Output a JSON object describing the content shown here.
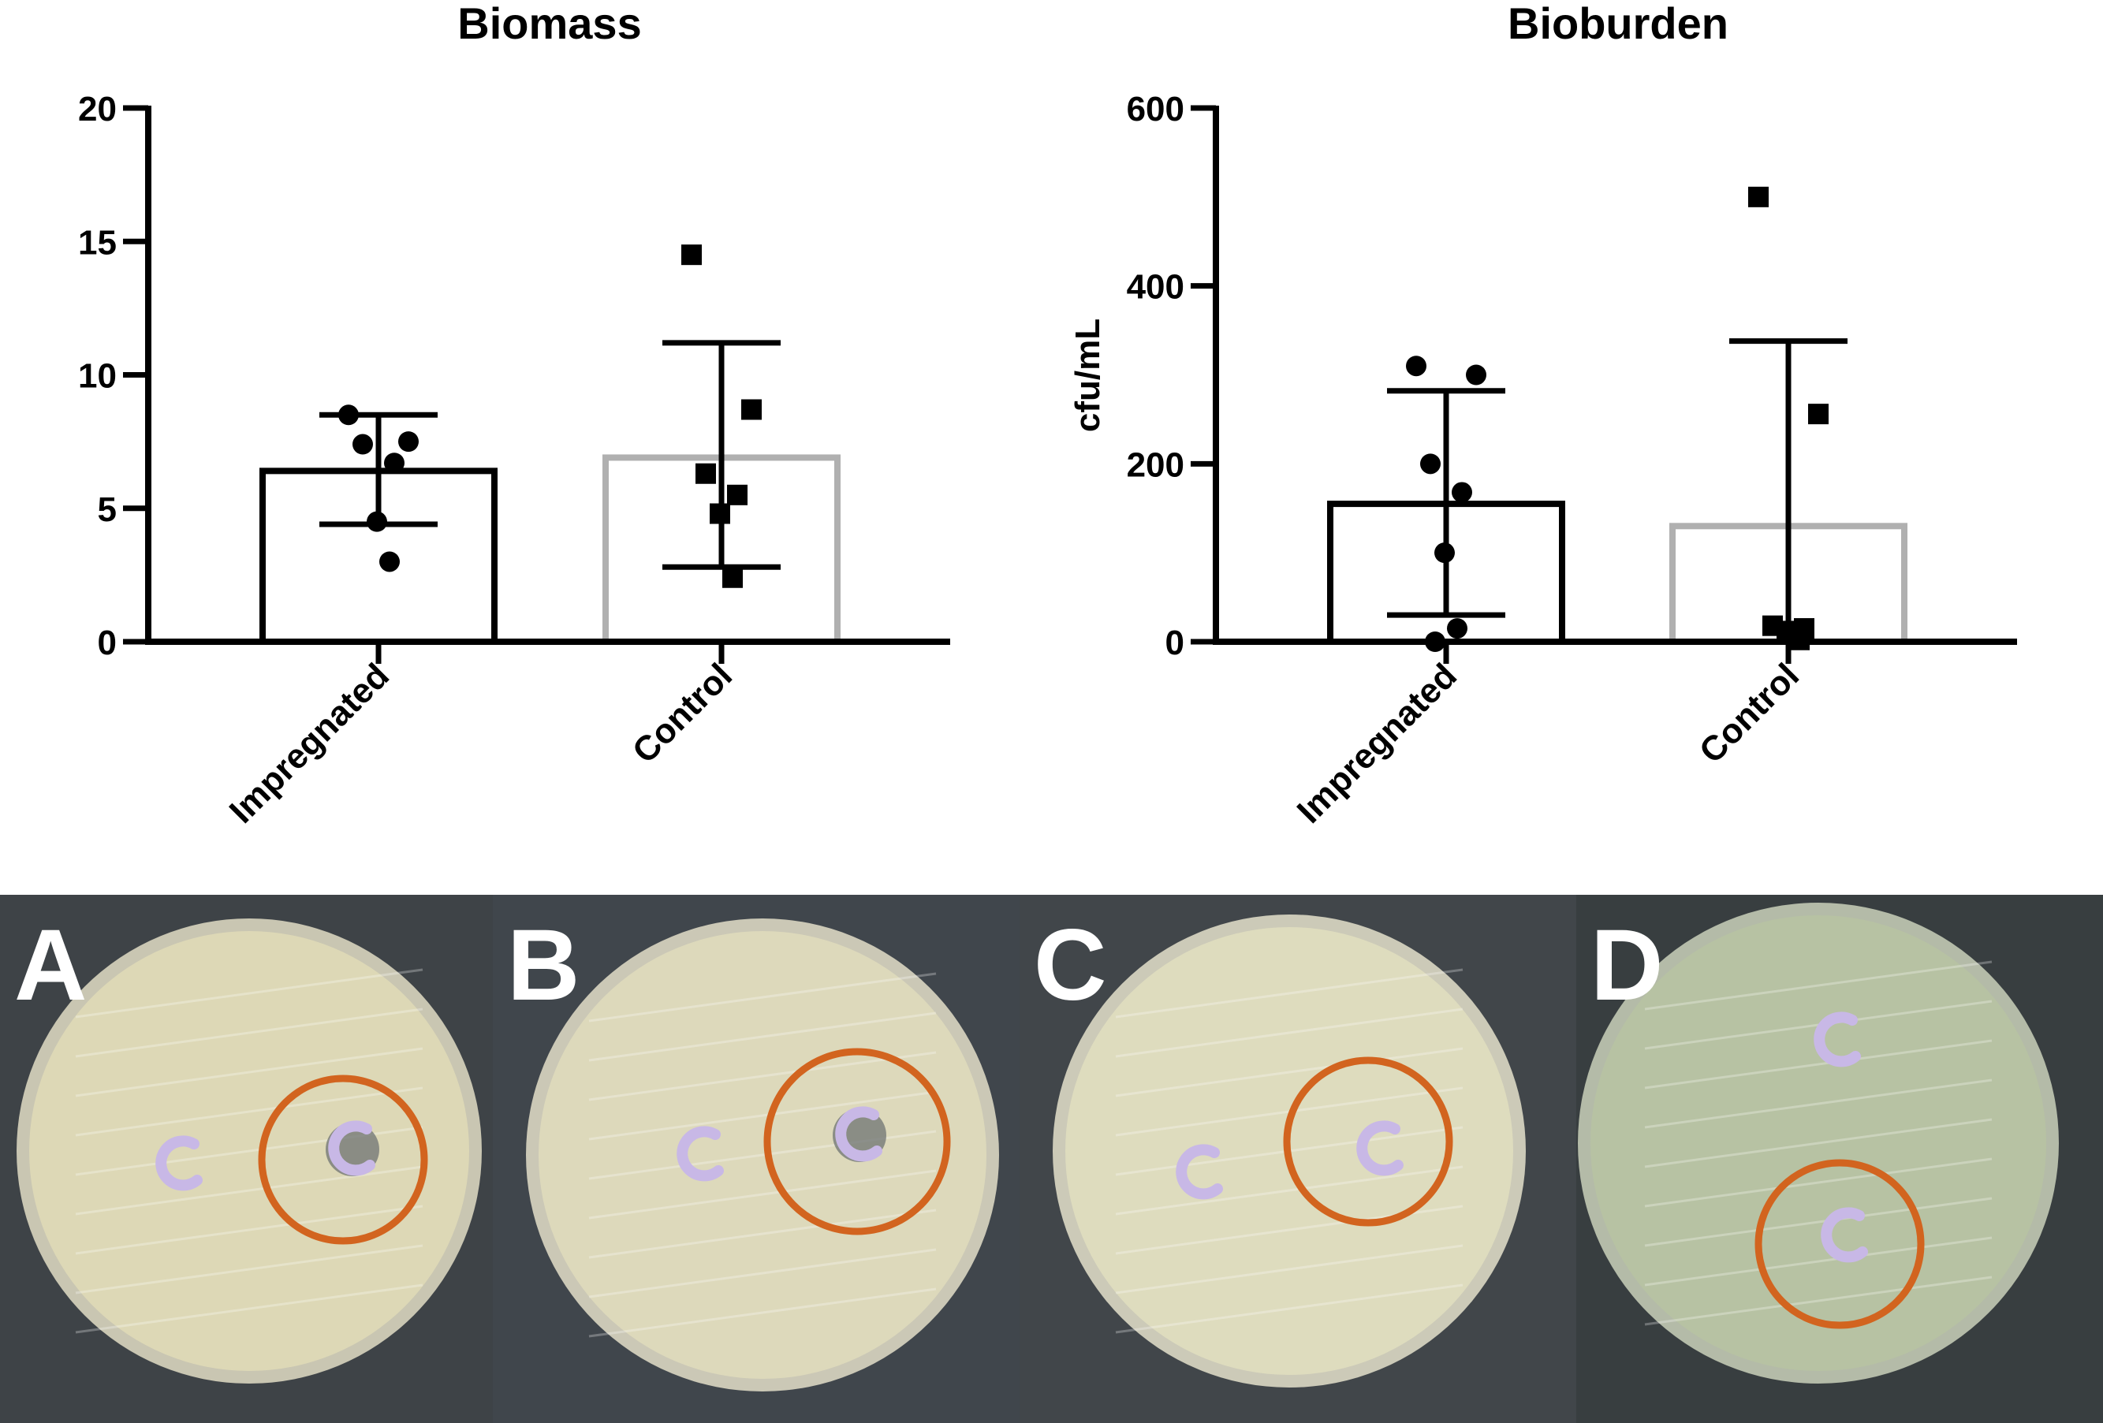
{
  "chart_data": [
    {
      "type": "bar",
      "title": "Biomass",
      "xlabel": "",
      "ylabel": "",
      "ylim": [
        0,
        20
      ],
      "yticks": [
        0,
        5,
        10,
        15,
        20
      ],
      "categories": [
        "Impregnated",
        "Control"
      ],
      "bar_colors": [
        "#000000",
        "#b0b0b0"
      ],
      "means": [
        6.4,
        6.9
      ],
      "sd_upper": [
        8.5,
        11.2
      ],
      "sd_lower": [
        4.4,
        2.8
      ],
      "marker": [
        "circle",
        "square"
      ],
      "points": [
        [
          8.5,
          7.5,
          7.4,
          6.7,
          4.5,
          3.0
        ],
        [
          14.5,
          8.7,
          6.3,
          5.5,
          4.8,
          2.4
        ]
      ]
    },
    {
      "type": "bar",
      "title": "Bioburden",
      "xlabel": "",
      "ylabel": "cfu/mL",
      "ylim": [
        0,
        600
      ],
      "yticks": [
        0,
        200,
        400,
        600
      ],
      "categories": [
        "Impregnated",
        "Control"
      ],
      "bar_colors": [
        "#000000",
        "#b0b0b0"
      ],
      "means": [
        155,
        130
      ],
      "sd_upper": [
        282,
        338
      ],
      "sd_lower": [
        30,
        0
      ],
      "marker": [
        "circle",
        "square"
      ],
      "points": [
        [
          310,
          300,
          200,
          168,
          100,
          15,
          0
        ],
        [
          500,
          256,
          18,
          15,
          12,
          2
        ]
      ]
    }
  ],
  "photos": {
    "panels": [
      {
        "label": "A",
        "background": "#3e4347",
        "agar": "#ddd8b6",
        "rim": "#c9c6b2"
      },
      {
        "label": "B",
        "background": "#40464c",
        "agar": "#ddd9bb",
        "rim": "#cbc8b6"
      },
      {
        "label": "C",
        "background": "#41464a",
        "agar": "#dedcbe",
        "rim": "#cccab8"
      },
      {
        "label": "D",
        "background": "#383e40",
        "agar": "#b7c2a3",
        "rim": "#b4bba8"
      }
    ],
    "highlight_color": "#d2641f"
  }
}
